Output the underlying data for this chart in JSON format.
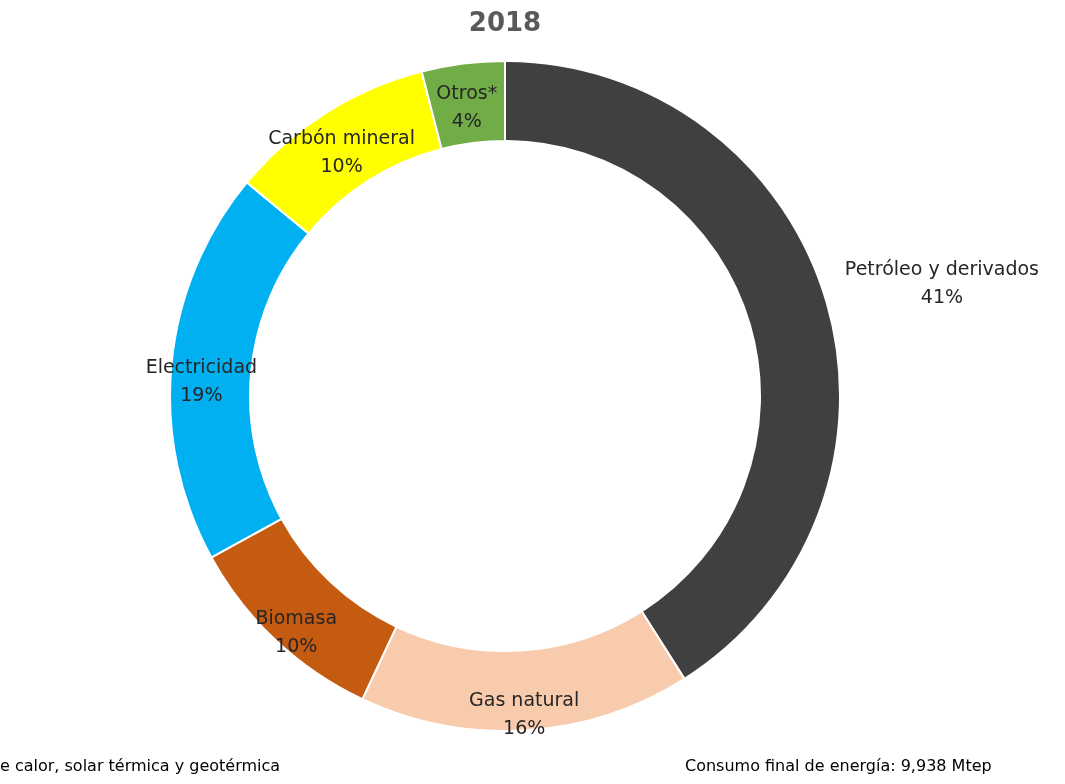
{
  "chart_data": {
    "type": "donut",
    "title": "2018",
    "categories": [
      "Petróleo y derivados",
      "Gas natural",
      "Biomasa",
      "Electricidad",
      "Carbón mineral",
      "Otros*"
    ],
    "values": [
      41,
      16,
      10,
      19,
      10,
      4
    ],
    "value_labels": [
      "41%",
      "16%",
      "10%",
      "19%",
      "10%",
      "4%"
    ],
    "colors": [
      "#404040",
      "#f8cbad",
      "#c55a11",
      "#00b0f0",
      "#ffff00",
      "#70ad47"
    ],
    "legend": false,
    "annotations": [
      "e calor, solar térmica y geotérmica",
      "Consumo final de energía: 9,938 Mtep"
    ]
  }
}
